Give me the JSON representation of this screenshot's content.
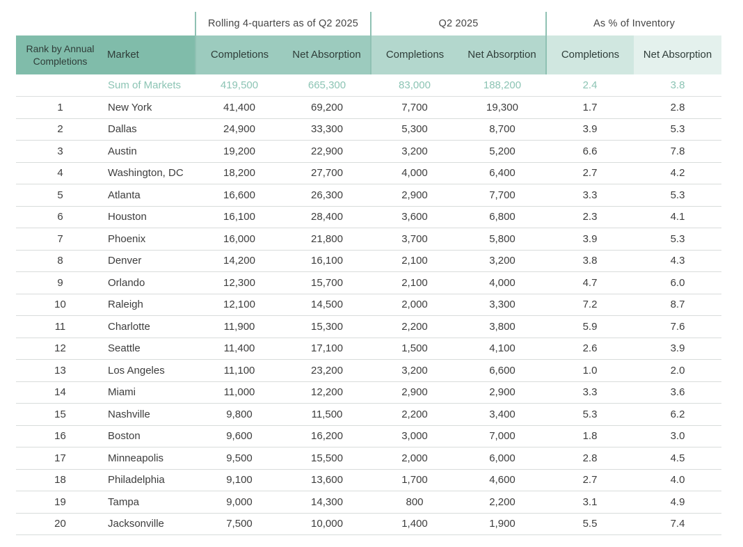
{
  "header": {
    "groups": [
      "Rolling 4-quarters as of Q2 2025",
      "Q2 2025",
      "As % of Inventory"
    ],
    "columns": [
      "Rank by Annual Completions",
      "Market",
      "Completions",
      "Net Absorption",
      "Completions",
      "Net Absorption",
      "Completions",
      "Net Absorption"
    ]
  },
  "colors": {
    "header_dark": "#80bcaa",
    "header_mid": "#9ccbbe",
    "header_light": "#b3d7cd",
    "header_lighter": "#d0e7e0",
    "header_lightest": "#e4f1ed",
    "sum_text": "#8cc4b4"
  },
  "summary": {
    "label": "Sum of Markets",
    "values": [
      "419,500",
      "665,300",
      "83,000",
      "188,200",
      "2.4",
      "3.8"
    ]
  },
  "rows": [
    [
      "1",
      "New York",
      "41,400",
      "69,200",
      "7,700",
      "19,300",
      "1.7",
      "2.8"
    ],
    [
      "2",
      "Dallas",
      "24,900",
      "33,300",
      "5,300",
      "8,700",
      "3.9",
      "5.3"
    ],
    [
      "3",
      "Austin",
      "19,200",
      "22,900",
      "3,200",
      "5,200",
      "6.6",
      "7.8"
    ],
    [
      "4",
      "Washington, DC",
      "18,200",
      "27,700",
      "4,000",
      "6,400",
      "2.7",
      "4.2"
    ],
    [
      "5",
      "Atlanta",
      "16,600",
      "26,300",
      "2,900",
      "7,700",
      "3.3",
      "5.3"
    ],
    [
      "6",
      "Houston",
      "16,100",
      "28,400",
      "3,600",
      "6,800",
      "2.3",
      "4.1"
    ],
    [
      "7",
      "Phoenix",
      "16,000",
      "21,800",
      "3,700",
      "5,800",
      "3.9",
      "5.3"
    ],
    [
      "8",
      "Denver",
      "14,200",
      "16,100",
      "2,100",
      "3,200",
      "3.8",
      "4.3"
    ],
    [
      "9",
      "Orlando",
      "12,300",
      "15,700",
      "2,100",
      "4,000",
      "4.7",
      "6.0"
    ],
    [
      "10",
      "Raleigh",
      "12,100",
      "14,500",
      "2,000",
      "3,300",
      "7.2",
      "8.7"
    ],
    [
      "11",
      "Charlotte",
      "11,900",
      "15,300",
      "2,200",
      "3,800",
      "5.9",
      "7.6"
    ],
    [
      "12",
      "Seattle",
      "11,400",
      "17,100",
      "1,500",
      "4,100",
      "2.6",
      "3.9"
    ],
    [
      "13",
      "Los Angeles",
      "11,100",
      "23,200",
      "3,200",
      "6,600",
      "1.0",
      "2.0"
    ],
    [
      "14",
      "Miami",
      "11,000",
      "12,200",
      "2,900",
      "2,900",
      "3.3",
      "3.6"
    ],
    [
      "15",
      "Nashville",
      "9,800",
      "11,500",
      "2,200",
      "3,400",
      "5.3",
      "6.2"
    ],
    [
      "16",
      "Boston",
      "9,600",
      "16,200",
      "3,000",
      "7,000",
      "1.8",
      "3.0"
    ],
    [
      "17",
      "Minneapolis",
      "9,500",
      "15,500",
      "2,000",
      "6,000",
      "2.8",
      "4.5"
    ],
    [
      "18",
      "Philadelphia",
      "9,100",
      "13,600",
      "1,700",
      "4,600",
      "2.7",
      "4.0"
    ],
    [
      "19",
      "Tampa",
      "9,000",
      "14,300",
      "800",
      "2,200",
      "3.1",
      "4.9"
    ],
    [
      "20",
      "Jacksonville",
      "7,500",
      "10,000",
      "1,400",
      "1,900",
      "5.5",
      "7.4"
    ]
  ]
}
